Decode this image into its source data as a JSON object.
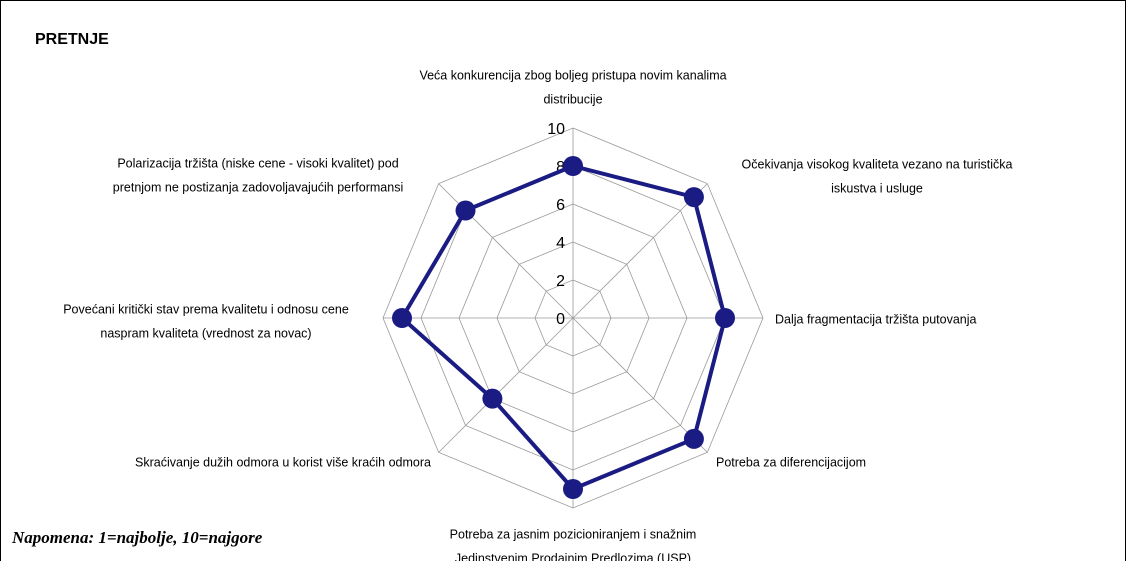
{
  "chart_data": {
    "type": "radar",
    "title": "PRETNJE",
    "note": "Napomena: 1=najbolje, 10=najgore",
    "categories": [
      [
        "Veća konkurencija zbog boljeg pristupa novim kanalima",
        "distribucije"
      ],
      [
        "Očekivanja visokog kvaliteta vezano na turistička",
        "iskustva i usluge"
      ],
      [
        "Dalja fragmentacija tržišta putovanja"
      ],
      [
        "Potreba za diferencijacijom"
      ],
      [
        "Potreba za jasnim pozicioniranjem i snažnim",
        "Jedinstvenim Prodajnim Predlozima (USP)"
      ],
      [
        "Skraćivanje dužih odmora u korist više kraćih odmora"
      ],
      [
        "Povećani kritički stav prema kvalitetu i odnosu cene",
        "naspram kvaliteta (vrednost za novac)"
      ],
      [
        "Polarizacija tržišta (niske cene - visoki kvalitet) pod",
        "pretnjom ne postizanja zadovoljavajućih performansi"
      ]
    ],
    "series": [
      {
        "name": null,
        "color": "#1b1b84",
        "values": [
          8,
          9,
          8,
          9,
          9,
          6,
          9,
          8
        ]
      }
    ],
    "ylim": [
      0,
      10
    ],
    "yticks": [
      0,
      2,
      4,
      6,
      8,
      10
    ],
    "grid": true
  }
}
